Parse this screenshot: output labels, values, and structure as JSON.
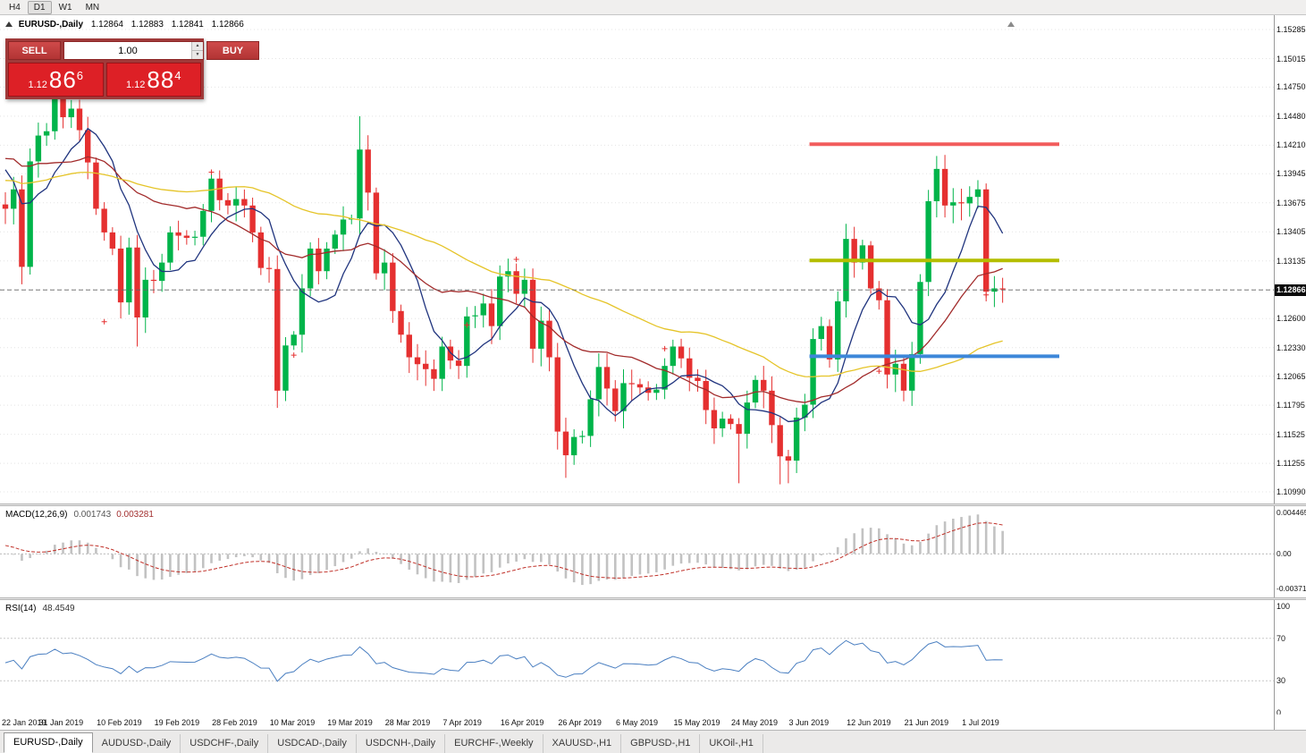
{
  "window": {
    "toolbar": {
      "timeframes": [
        {
          "label": "H4",
          "active": false
        },
        {
          "label": "D1",
          "active": true
        },
        {
          "label": "W1",
          "active": false
        },
        {
          "label": "MN",
          "active": false
        }
      ]
    },
    "tabs": [
      {
        "label": "EURUSD-,Daily",
        "active": true
      },
      {
        "label": "AUDUSD-,Daily",
        "active": false
      },
      {
        "label": "USDCHF-,Daily",
        "active": false
      },
      {
        "label": "USDCAD-,Daily",
        "active": false
      },
      {
        "label": "USDCNH-,Daily",
        "active": false
      },
      {
        "label": "EURCHF-,Weekly",
        "active": false
      },
      {
        "label": "XAUUSD-,H1",
        "active": false
      },
      {
        "label": "GBPUSD-,H1",
        "active": false
      },
      {
        "label": "UKOil-,H1",
        "active": false
      }
    ]
  },
  "chart_header": {
    "symbol": "EURUSD-,Daily",
    "open": "1.12864",
    "high": "1.12883",
    "low": "1.12841",
    "close": "1.12866"
  },
  "trade_panel": {
    "sell_label": "SELL",
    "buy_label": "BUY",
    "volume": "1.00",
    "sell_price": {
      "prefix": "1.12",
      "big": "86",
      "sup": "6"
    },
    "buy_price": {
      "prefix": "1.12",
      "big": "88",
      "sup": "4"
    }
  },
  "right_axis": {
    "labels": [
      "1.15285",
      "1.15015",
      "1.14750",
      "1.14480",
      "1.14210",
      "1.13945",
      "1.13675",
      "1.13405",
      "1.13135",
      "1.12600",
      "1.12330",
      "1.12065",
      "1.11795",
      "1.11525",
      "1.11255",
      "1.10990"
    ],
    "hidden_grid": [
      "1.12870"
    ],
    "current_price": "1.12866"
  },
  "macd_panel": {
    "title": "MACD(12,26,9)",
    "value_main": "0.001743",
    "value_signal": "0.003281",
    "axis": [
      "0.004465",
      "0.00",
      "-0.003715"
    ],
    "axis_values": [
      0.004465,
      0,
      -0.003715
    ]
  },
  "rsi_panel": {
    "title": "RSI(14)",
    "value": "48.4549",
    "axis": [
      "100",
      "70",
      "30",
      "0"
    ],
    "axis_values": [
      100,
      70,
      30,
      0
    ],
    "levels": [
      70,
      30
    ]
  },
  "time_axis": {
    "ticks": [
      {
        "label": "22 Jan 2019",
        "index": 0
      },
      {
        "label": "31 Jan 2019",
        "index": 7
      },
      {
        "label": "10 Feb 2019",
        "index": 14
      },
      {
        "label": "19 Feb 2019",
        "index": 21
      },
      {
        "label": "28 Feb 2019",
        "index": 28
      },
      {
        "label": "10 Mar 2019",
        "index": 35
      },
      {
        "label": "19 Mar 2019",
        "index": 42
      },
      {
        "label": "28 Mar 2019",
        "index": 49
      },
      {
        "label": "7 Apr 2019",
        "index": 56
      },
      {
        "label": "16 Apr 2019",
        "index": 63
      },
      {
        "label": "26 Apr 2019",
        "index": 70
      },
      {
        "label": "6 May 2019",
        "index": 77
      },
      {
        "label": "15 May 2019",
        "index": 84
      },
      {
        "label": "24 May 2019",
        "index": 91
      },
      {
        "label": "3 Jun 2019",
        "index": 98
      },
      {
        "label": "12 Jun 2019",
        "index": 105
      },
      {
        "label": "21 Jun 2019",
        "index": 112
      },
      {
        "label": "1 Jul 2019",
        "index": 119
      }
    ]
  },
  "chart_data": {
    "type": "candlestick",
    "title": "EURUSD-,Daily",
    "symbol": "EURUSD",
    "timeframe": "Daily",
    "ylim": [
      1.1099,
      1.15285
    ],
    "first_open": 1.1366,
    "closes": [
      1.1362,
      1.138,
      1.1308,
      1.1406,
      1.143,
      1.1434,
      1.148,
      1.1447,
      1.1455,
      1.1435,
      1.1405,
      1.1362,
      1.134,
      1.1325,
      1.1275,
      1.1326,
      1.1261,
      1.1296,
      1.1295,
      1.1312,
      1.134,
      1.1337,
      1.1335,
      1.1336,
      1.136,
      1.139,
      1.137,
      1.1365,
      1.1371,
      1.1365,
      1.134,
      1.1307,
      1.1306,
      1.1193,
      1.1235,
      1.1245,
      1.1288,
      1.1325,
      1.1304,
      1.1325,
      1.1338,
      1.1352,
      1.1353,
      1.1417,
      1.1377,
      1.1302,
      1.1312,
      1.1267,
      1.1245,
      1.1224,
      1.1218,
      1.1213,
      1.1204,
      1.1234,
      1.1221,
      1.1216,
      1.1262,
      1.1263,
      1.1274,
      1.1253,
      1.1299,
      1.1304,
      1.1283,
      1.1296,
      1.1232,
      1.1258,
      1.1224,
      1.1155,
      1.1133,
      1.115,
      1.1151,
      1.1185,
      1.1215,
      1.1195,
      1.1174,
      1.12,
      1.1199,
      1.1196,
      1.1191,
      1.1194,
      1.1216,
      1.1234,
      1.1223,
      1.1205,
      1.1202,
      1.1175,
      1.1158,
      1.1167,
      1.1162,
      1.1153,
      1.1182,
      1.1203,
      1.1193,
      1.1161,
      1.1132,
      1.1128,
      1.1168,
      1.118,
      1.1241,
      1.1253,
      1.1222,
      1.1276,
      1.1334,
      1.1312,
      1.1328,
      1.1288,
      1.1277,
      1.1208,
      1.1218,
      1.1193,
      1.1227,
      1.1294,
      1.1369,
      1.1399,
      1.1365,
      1.1368,
      1.1367,
      1.1373,
      1.138,
      1.1285,
      1.1288,
      1.1287
    ],
    "wick_overrides": {
      "3": {
        "h": 1.1418
      },
      "6": {
        "h": 1.1502
      },
      "7": {
        "h": 1.1514
      },
      "16": {
        "l": 1.1234
      },
      "33": {
        "l": 1.1177
      },
      "43": {
        "h": 1.1448
      },
      "67": {
        "l": 1.1142
      },
      "68": {
        "l": 1.1112
      },
      "89": {
        "l": 1.1107
      },
      "94": {
        "l": 1.1106
      },
      "95": {
        "l": 1.1107
      },
      "102": {
        "h": 1.1348
      },
      "113": {
        "h": 1.1403
      },
      "114": {
        "h": 1.1412
      },
      "119": {
        "l": 1.1276
      }
    },
    "warmup_closes": [
      1.1358,
      1.1316,
      1.132,
      1.1363,
      1.1305,
      1.1306,
      1.1348,
      1.1362,
      1.1391,
      1.1446,
      1.1406,
      1.1377,
      1.1435,
      1.1465,
      1.1439,
      1.1446,
      1.1396,
      1.1345,
      1.1396,
      1.1398,
      1.1456,
      1.147,
      1.1471,
      1.1399,
      1.1365,
      1.139,
      1.1363,
      1.1366
    ],
    "moving_averages": [
      {
        "period": 8,
        "color": "#20347e"
      },
      {
        "period": 21,
        "color": "#a22b2b"
      },
      {
        "period": 50,
        "color": "#e5c428"
      }
    ],
    "hlines": [
      {
        "price": 1.1422,
        "color": "#f25c5c",
        "width": 4,
        "from_index": 98
      },
      {
        "price": 1.1314,
        "color": "#b4bd00",
        "width": 4,
        "from_index": 98
      },
      {
        "price": 1.1225,
        "color": "#3d87d9",
        "width": 4,
        "from_index": 98
      }
    ],
    "bid_line": 1.12866,
    "markers": [
      [
        12,
        1.1257
      ],
      [
        25,
        1.1396
      ],
      [
        35,
        1.1226
      ],
      [
        50,
        1.1218
      ],
      [
        56,
        1.1254
      ],
      [
        62,
        1.1315
      ],
      [
        64,
        1.1249
      ],
      [
        73,
        1.1207
      ],
      [
        80,
        1.1232
      ],
      [
        88,
        1.1166
      ],
      [
        93,
        1.1191
      ],
      [
        106,
        1.1211
      ],
      [
        119,
        1.1282
      ]
    ],
    "colors": {
      "up": "#00b44a",
      "down": "#e53030"
    }
  }
}
